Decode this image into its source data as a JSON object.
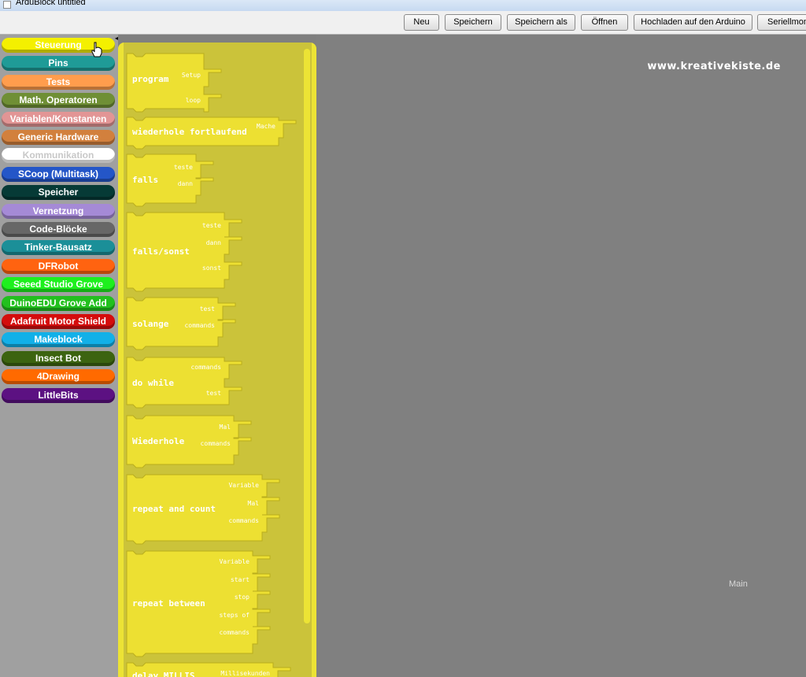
{
  "window": {
    "title": "ArduBlock untitled"
  },
  "toolbar": {
    "buttons": [
      {
        "label": "Neu"
      },
      {
        "label": "Speichern"
      },
      {
        "label": "Speichern als"
      },
      {
        "label": "Öffnen"
      },
      {
        "label": "Hochladen auf den Arduino"
      },
      {
        "label": "Seriellmoni"
      }
    ]
  },
  "palette": {
    "categories": [
      {
        "label": "Steuerung",
        "color": "#f4f000",
        "text_color": "#ffffff",
        "selected": true
      },
      {
        "label": "Pins",
        "color": "#1f9b97",
        "text_color": "#ffffff"
      },
      {
        "label": "Tests",
        "color": "#ff9d4d",
        "text_color": "#ffffff"
      },
      {
        "label": "Math. Operatoren",
        "color": "#6f8f35",
        "text_color": "#ffffff"
      },
      {
        "label": "Variablen/Konstanten",
        "color": "#e29595",
        "text_color": "#ffffff"
      },
      {
        "label": "Generic Hardware",
        "color": "#d2803d",
        "text_color": "#ffffff"
      },
      {
        "label": "Kommunikation",
        "color": "#ffffff",
        "text_color": "#c8c8c8"
      },
      {
        "label": "SCoop (Multitask)",
        "color": "#2456c8",
        "text_color": "#ffffff"
      },
      {
        "label": "Speicher",
        "color": "#063a36",
        "text_color": "#ffffff"
      },
      {
        "label": "Vernetzung",
        "color": "#a58ad6",
        "text_color": "#ffffff"
      },
      {
        "label": "Code-Blöcke",
        "color": "#676767",
        "text_color": "#ffffff"
      },
      {
        "label": "Tinker-Bausatz",
        "color": "#1b8f98",
        "text_color": "#ffffff"
      },
      {
        "label": "DFRobot",
        "color": "#ff6310",
        "text_color": "#ffffff"
      },
      {
        "label": "Seeed Studio Grove",
        "color": "#1ef01e",
        "text_color": "#ffffff"
      },
      {
        "label": "DuinoEDU Grove Add",
        "color": "#22c01e",
        "text_color": "#ffffff"
      },
      {
        "label": "Adafruit Motor Shield",
        "color": "#d40d0d",
        "text_color": "#ffffff"
      },
      {
        "label": "Makeblock",
        "color": "#12b0e8",
        "text_color": "#ffffff"
      },
      {
        "label": "Insect Bot",
        "color": "#3c6410",
        "text_color": "#ffffff"
      },
      {
        "label": "4Drawing",
        "color": "#ff6a00",
        "text_color": "#ffffff"
      },
      {
        "label": "LittleBits",
        "color": "#5c1182",
        "text_color": "#ffffff"
      }
    ]
  },
  "drawer": {
    "block_color": "#ede032",
    "blocks": [
      {
        "title": "program",
        "sockets": [
          "Setup",
          "loop"
        ]
      },
      {
        "title": "wiederhole fortlaufend",
        "sockets": [
          "Mache"
        ]
      },
      {
        "title": "falls",
        "sockets": [
          "teste",
          "dann"
        ]
      },
      {
        "title": "falls/sonst",
        "sockets": [
          "teste",
          "dann",
          "sonst"
        ]
      },
      {
        "title": "solange",
        "sockets": [
          "test",
          "commands"
        ]
      },
      {
        "title": "do while",
        "sockets": [
          "commands",
          "test"
        ]
      },
      {
        "title": "Wiederhole",
        "sockets": [
          "Mal",
          "commands"
        ]
      },
      {
        "title": "repeat and count",
        "sockets": [
          "Variable",
          "Mal",
          "commands"
        ]
      },
      {
        "title": "repeat between",
        "sockets": [
          "Variable",
          "start",
          "stop",
          "steps of",
          "commands"
        ]
      },
      {
        "title": "delay MILLIS",
        "sockets": [
          "Millisekunden"
        ]
      }
    ]
  },
  "canvas": {
    "watermark": "www.kreativekiste.de",
    "label": "Main"
  }
}
